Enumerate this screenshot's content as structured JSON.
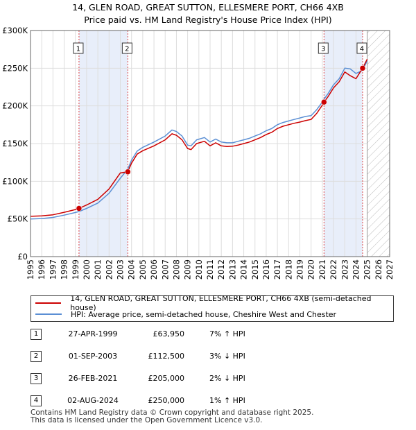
{
  "titles": {
    "line1": "14, GLEN ROAD, GREAT SUTTON, ELLESMERE PORT, CH66 4XB",
    "line2": "Price paid vs. HM Land Registry's House Price Index (HPI)"
  },
  "legend": {
    "property_label": "14, GLEN ROAD, GREAT SUTTON, ELLESMERE PORT, CH66 4XB (semi-detached house)",
    "hpi_label": "HPI: Average price, semi-detached house, Cheshire West and Chester"
  },
  "transactions": [
    {
      "num": "1",
      "date": "27-APR-1999",
      "price": "£63,950",
      "hpi": "7% ↑ HPI"
    },
    {
      "num": "2",
      "date": "01-SEP-2003",
      "price": "£112,500",
      "hpi": "3% ↓ HPI"
    },
    {
      "num": "3",
      "date": "26-FEB-2021",
      "price": "£205,000",
      "hpi": "2% ↓ HPI"
    },
    {
      "num": "4",
      "date": "02-AUG-2024",
      "price": "£250,000",
      "hpi": "1% ↑ HPI"
    }
  ],
  "footer": {
    "line1": "Contains HM Land Registry data © Crown copyright and database right 2025.",
    "line2": "This data is licensed under the Open Government Licence v3.0."
  },
  "colors": {
    "property": "#cc0000",
    "hpi": "#5b8fd4",
    "shade": "#e8eefa",
    "grid": "#dddddd",
    "marker_line": "#dd4444"
  },
  "chart_data": {
    "type": "line",
    "title": "Price paid vs. HM Land Registry's House Price Index (HPI)",
    "xlim": [
      1995,
      2027
    ],
    "ylim": [
      0,
      300000
    ],
    "y_ticks": [
      0,
      50000,
      100000,
      150000,
      200000,
      250000,
      300000
    ],
    "y_tick_labels": [
      "£0",
      "£50K",
      "£100K",
      "£150K",
      "£200K",
      "£250K",
      "£300K"
    ],
    "x_ticks": [
      1995,
      1996,
      1997,
      1998,
      1999,
      2000,
      2001,
      2002,
      2003,
      2004,
      2005,
      2006,
      2007,
      2008,
      2009,
      2010,
      2011,
      2012,
      2013,
      2014,
      2015,
      2016,
      2017,
      2018,
      2019,
      2020,
      2021,
      2022,
      2023,
      2024,
      2025,
      2026,
      2027
    ],
    "forecast_start": 2025.0,
    "shaded_ranges": [
      [
        1999.32,
        2003.67
      ],
      [
        2021.15,
        2024.59
      ]
    ],
    "sales": [
      {
        "label": "1",
        "x": 1999.32,
        "y": 63950
      },
      {
        "label": "2",
        "x": 2003.67,
        "y": 112500
      },
      {
        "label": "3",
        "x": 2021.15,
        "y": 205000
      },
      {
        "label": "4",
        "x": 2024.59,
        "y": 250000
      }
    ],
    "series": [
      {
        "name": "HPI: Average price, semi-detached house, Cheshire West and Chester",
        "x": [
          1995.0,
          1996.0,
          1997.0,
          1998.0,
          1999.0,
          1999.32,
          2000.0,
          2001.0,
          2002.0,
          2003.0,
          2003.67,
          2004.0,
          2004.5,
          2005.0,
          2006.0,
          2007.0,
          2007.6,
          2008.0,
          2008.5,
          2009.0,
          2009.3,
          2009.8,
          2010.5,
          2011.0,
          2011.5,
          2012.0,
          2012.5,
          2013.0,
          2013.5,
          2014.0,
          2014.5,
          2015.0,
          2015.5,
          2016.0,
          2016.5,
          2017.0,
          2017.5,
          2018.0,
          2018.5,
          2019.0,
          2019.5,
          2020.0,
          2020.5,
          2021.0,
          2021.15,
          2021.5,
          2022.0,
          2022.5,
          2023.0,
          2023.5,
          2024.0,
          2024.59,
          2025.0
        ],
        "values": [
          50000,
          50500,
          52000,
          55000,
          58500,
          59800,
          64000,
          71000,
          84000,
          104000,
          116000,
          128000,
          140000,
          145000,
          152000,
          160000,
          168000,
          166000,
          160000,
          148000,
          147000,
          155000,
          158000,
          152000,
          156000,
          152000,
          151000,
          151000,
          153000,
          155000,
          157000,
          160000,
          163000,
          167000,
          170000,
          175000,
          178000,
          180000,
          182000,
          184000,
          186000,
          187000,
          195000,
          205000,
          209000,
          216000,
          228000,
          236000,
          250000,
          249000,
          243000,
          247000,
          260000
        ]
      },
      {
        "name": "14, GLEN ROAD, GREAT SUTTON, ELLESMERE PORT, CH66 4XB (semi-detached house)",
        "x": [
          1995.0,
          1996.0,
          1997.0,
          1998.0,
          1999.0,
          1999.32,
          2000.0,
          2001.0,
          2002.0,
          2003.0,
          2003.67,
          2004.0,
          2004.5,
          2005.0,
          2006.0,
          2007.0,
          2007.6,
          2008.0,
          2008.5,
          2009.0,
          2009.3,
          2009.8,
          2010.5,
          2011.0,
          2011.5,
          2012.0,
          2012.5,
          2013.0,
          2013.5,
          2014.0,
          2014.5,
          2015.0,
          2015.5,
          2016.0,
          2016.5,
          2017.0,
          2017.5,
          2018.0,
          2018.5,
          2019.0,
          2019.5,
          2020.0,
          2020.5,
          2021.0,
          2021.15,
          2021.5,
          2022.0,
          2022.5,
          2023.0,
          2023.5,
          2024.0,
          2024.59,
          2025.0
        ],
        "values": [
          53500,
          54000,
          55500,
          58800,
          62500,
          63950,
          68500,
          76000,
          89800,
          111000,
          112500,
          124000,
          136000,
          140500,
          147000,
          155000,
          163000,
          161000,
          155000,
          143500,
          142000,
          150000,
          153000,
          147000,
          151000,
          147000,
          146000,
          146500,
          148000,
          150000,
          152000,
          155000,
          158000,
          162000,
          165000,
          170000,
          173000,
          175000,
          177000,
          178500,
          180500,
          182000,
          190000,
          201000,
          205000,
          212000,
          224000,
          232000,
          245000,
          240000,
          236000,
          250000,
          262000
        ]
      }
    ]
  }
}
